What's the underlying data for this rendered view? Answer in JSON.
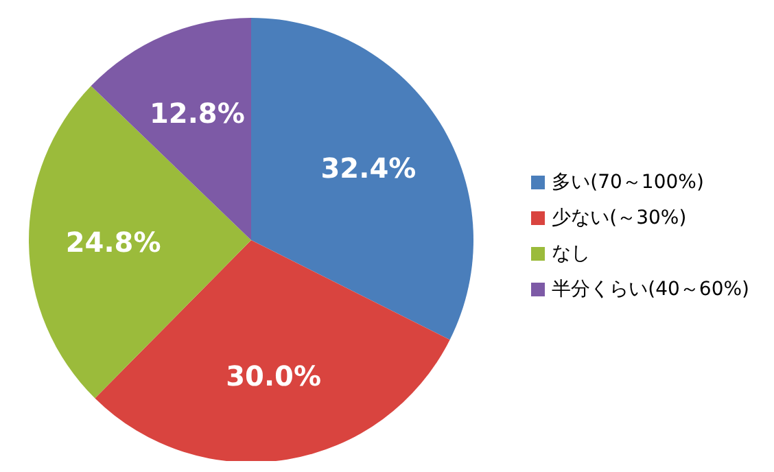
{
  "chart_data": {
    "type": "pie",
    "categories": [
      "多い(70～100%)",
      "少ない(～30%)",
      "なし",
      "半分くらい(40～60%)"
    ],
    "values": [
      32.4,
      30.0,
      24.8,
      12.8
    ],
    "colors": [
      "#4a7ebb",
      "#d9443f",
      "#9bbb3b",
      "#7d5aa6"
    ],
    "value_labels": [
      "32.4%",
      "30.0%",
      "24.8%",
      "12.8%"
    ],
    "legend": "right"
  }
}
